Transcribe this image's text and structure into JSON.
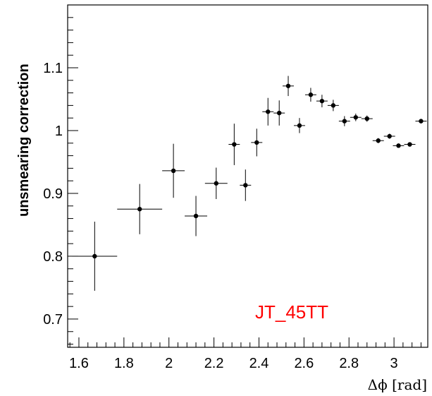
{
  "chart_data": {
    "type": "scatter",
    "title": "",
    "xlabel": "Δϕ [rad]",
    "ylabel": "unsmearing correction",
    "xlim": [
      1.55,
      3.15
    ],
    "ylim": [
      0.655,
      1.2
    ],
    "xticks": [
      1.6,
      1.8,
      2.0,
      2.2,
      2.4,
      2.6,
      2.8,
      3.0
    ],
    "xtick_labels": [
      "1.6",
      "1.8",
      "2",
      "2.2",
      "2.4",
      "2.6",
      "2.8",
      "3"
    ],
    "yticks": [
      0.7,
      0.8,
      0.9,
      1.0,
      1.1
    ],
    "ytick_labels": [
      "0.7",
      "0.8",
      "0.9",
      "1",
      "1.1"
    ],
    "grid": false,
    "annotation": {
      "text": "JT_45TT",
      "color": "#ff0000"
    },
    "series": [
      {
        "marker_color": "#000000",
        "points": [
          {
            "x": 1.67,
            "y": 0.8,
            "xerr": 0.1,
            "yerr": 0.055
          },
          {
            "x": 1.87,
            "y": 0.875,
            "xerr": 0.1,
            "yerr": 0.04
          },
          {
            "x": 2.02,
            "y": 0.936,
            "xerr": 0.05,
            "yerr": 0.043
          },
          {
            "x": 2.12,
            "y": 0.864,
            "xerr": 0.05,
            "yerr": 0.032
          },
          {
            "x": 2.21,
            "y": 0.916,
            "xerr": 0.05,
            "yerr": 0.025
          },
          {
            "x": 2.29,
            "y": 0.978,
            "xerr": 0.025,
            "yerr": 0.033
          },
          {
            "x": 2.34,
            "y": 0.913,
            "xerr": 0.025,
            "yerr": 0.025
          },
          {
            "x": 2.39,
            "y": 0.981,
            "xerr": 0.025,
            "yerr": 0.022
          },
          {
            "x": 2.44,
            "y": 1.03,
            "xerr": 0.025,
            "yerr": 0.022
          },
          {
            "x": 2.49,
            "y": 1.028,
            "xerr": 0.025,
            "yerr": 0.02
          },
          {
            "x": 2.53,
            "y": 1.071,
            "xerr": 0.025,
            "yerr": 0.016
          },
          {
            "x": 2.58,
            "y": 1.008,
            "xerr": 0.025,
            "yerr": 0.012
          },
          {
            "x": 2.63,
            "y": 1.057,
            "xerr": 0.025,
            "yerr": 0.011
          },
          {
            "x": 2.68,
            "y": 1.047,
            "xerr": 0.025,
            "yerr": 0.01
          },
          {
            "x": 2.73,
            "y": 1.04,
            "xerr": 0.025,
            "yerr": 0.009
          },
          {
            "x": 2.78,
            "y": 1.015,
            "xerr": 0.025,
            "yerr": 0.008
          },
          {
            "x": 2.83,
            "y": 1.021,
            "xerr": 0.025,
            "yerr": 0.006
          },
          {
            "x": 2.88,
            "y": 1.019,
            "xerr": 0.025,
            "yerr": 0.005
          },
          {
            "x": 2.93,
            "y": 0.984,
            "xerr": 0.025,
            "yerr": 0.004
          },
          {
            "x": 2.98,
            "y": 0.991,
            "xerr": 0.025,
            "yerr": 0.004
          },
          {
            "x": 3.02,
            "y": 0.976,
            "xerr": 0.025,
            "yerr": 0.003
          },
          {
            "x": 3.07,
            "y": 0.978,
            "xerr": 0.025,
            "yerr": 0.003
          },
          {
            "x": 3.12,
            "y": 1.015,
            "xerr": 0.025,
            "yerr": 0.003
          }
        ]
      }
    ]
  }
}
